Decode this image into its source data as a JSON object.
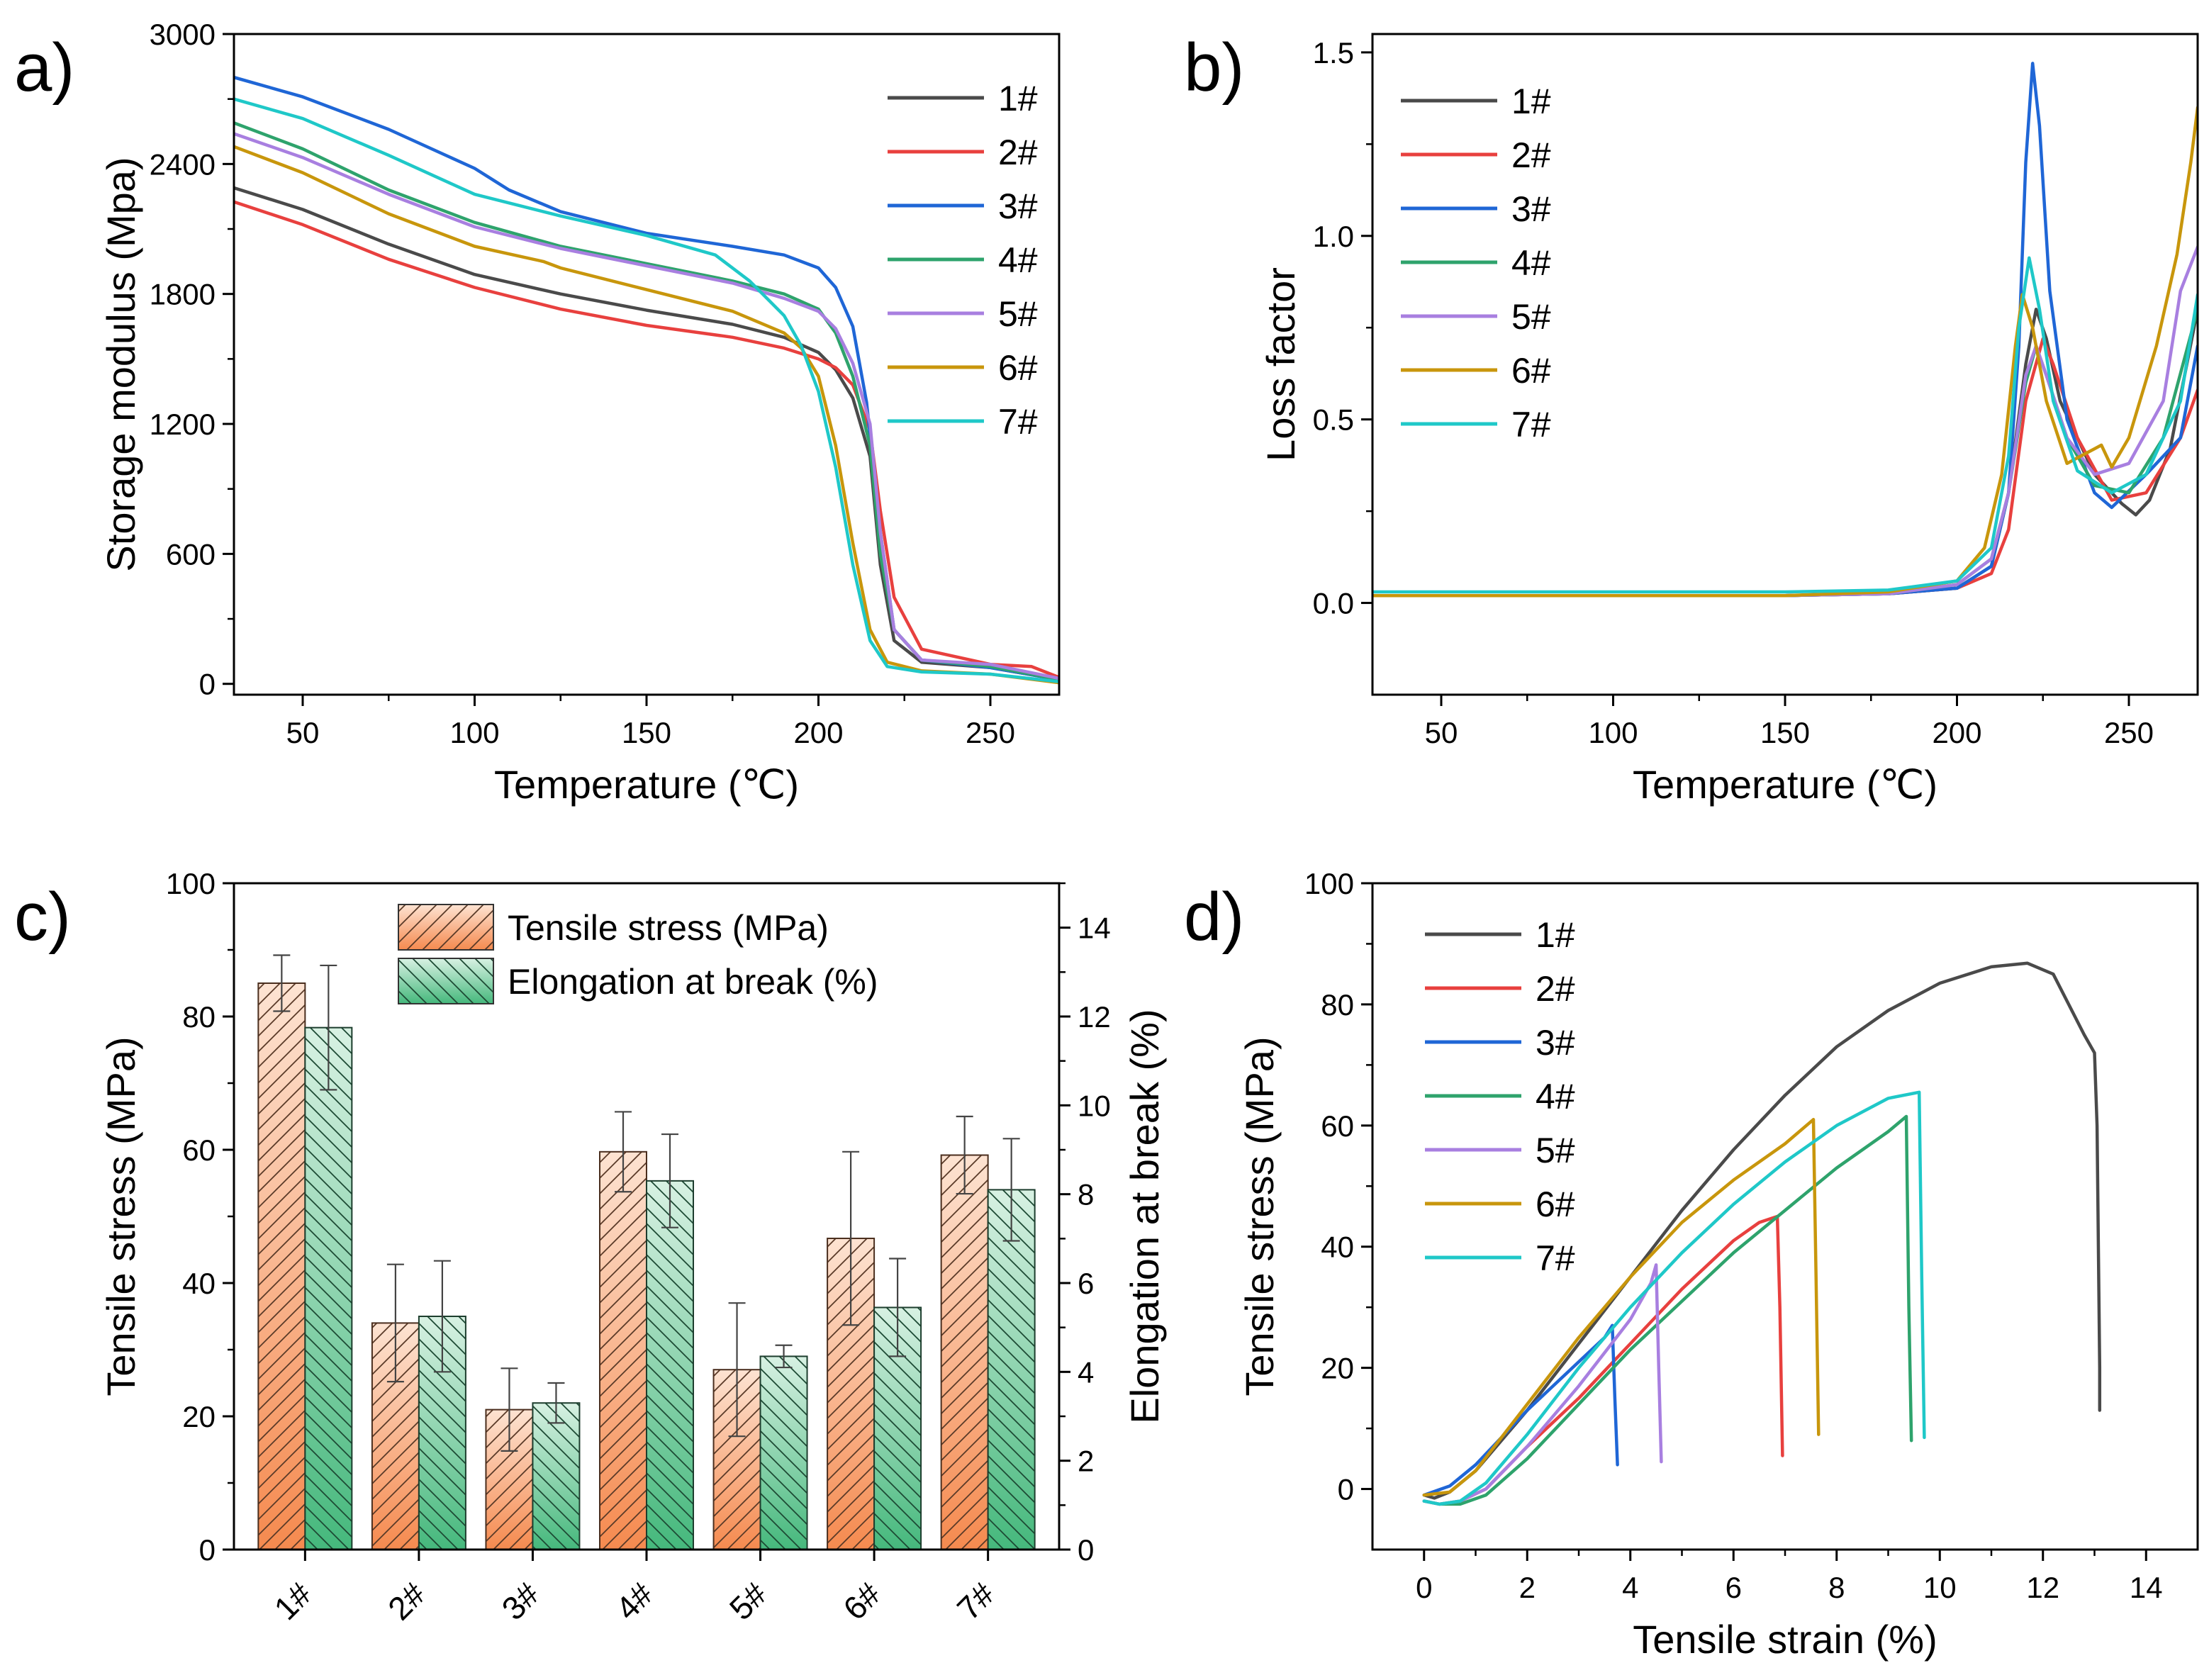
{
  "panel_labels": [
    "a)",
    "b)",
    "c)",
    "d)"
  ],
  "colors": {
    "series": [
      "#4a4a4a",
      "#e8403e",
      "#1f66d6",
      "#2ea36c",
      "#a87fe0",
      "#c8960c",
      "#1fc8c8"
    ],
    "tensile_bar": "#f58a4f",
    "elongation_bar": "#45b87c"
  },
  "chart_data": [
    {
      "type": "line",
      "panel": "a)",
      "xlabel": "Temperature (℃)",
      "ylabel": "Storage modulus (Mpa)",
      "xlim": [
        30,
        270
      ],
      "ylim": [
        -50,
        3000
      ],
      "xticks": [
        50,
        100,
        150,
        200,
        250
      ],
      "xtick_labels": [
        "50",
        "100",
        "150",
        "200",
        "250"
      ],
      "yticks": [
        0,
        600,
        1200,
        1800,
        2400,
        3000
      ],
      "ytick_labels": [
        "0",
        "600",
        "1200",
        "1800",
        "2400",
        "3000"
      ],
      "legend": "top-right",
      "series": [
        {
          "name": "1#",
          "x": [
            30,
            50,
            75,
            100,
            125,
            150,
            175,
            190,
            200,
            205,
            210,
            215,
            218,
            222,
            230,
            250,
            270
          ],
          "y": [
            2290,
            2190,
            2030,
            1890,
            1800,
            1725,
            1660,
            1600,
            1530,
            1450,
            1320,
            1050,
            550,
            200,
            100,
            75,
            20
          ]
        },
        {
          "name": "2#",
          "x": [
            30,
            50,
            75,
            100,
            125,
            150,
            175,
            190,
            200,
            205,
            210,
            215,
            218,
            222,
            230,
            250,
            262,
            270
          ],
          "y": [
            2225,
            2120,
            1960,
            1830,
            1730,
            1655,
            1600,
            1550,
            1500,
            1460,
            1380,
            1170,
            800,
            400,
            160,
            90,
            80,
            30
          ]
        },
        {
          "name": "3#",
          "x": [
            30,
            50,
            75,
            100,
            106,
            110,
            125,
            150,
            175,
            190,
            200,
            205,
            210,
            214,
            218,
            222,
            230,
            250,
            270
          ],
          "y": [
            2800,
            2710,
            2560,
            2380,
            2320,
            2280,
            2180,
            2080,
            2020,
            1980,
            1920,
            1830,
            1650,
            1300,
            700,
            250,
            110,
            75,
            20
          ]
        },
        {
          "name": "4#",
          "x": [
            30,
            50,
            75,
            100,
            125,
            150,
            175,
            190,
            200,
            205,
            210,
            215,
            218,
            222,
            230,
            250,
            270
          ],
          "y": [
            2590,
            2470,
            2280,
            2130,
            2020,
            1940,
            1860,
            1800,
            1730,
            1620,
            1420,
            1100,
            600,
            250,
            110,
            80,
            20
          ]
        },
        {
          "name": "5#",
          "x": [
            30,
            50,
            75,
            100,
            125,
            150,
            175,
            190,
            200,
            205,
            210,
            215,
            218,
            222,
            230,
            250,
            270
          ],
          "y": [
            2540,
            2430,
            2260,
            2110,
            2010,
            1930,
            1850,
            1780,
            1720,
            1640,
            1480,
            1200,
            700,
            250,
            110,
            90,
            25
          ]
        },
        {
          "name": "6#",
          "x": [
            30,
            50,
            75,
            100,
            120,
            125,
            150,
            175,
            190,
            195,
            200,
            205,
            210,
            215,
            220,
            230,
            250,
            270
          ],
          "y": [
            2480,
            2360,
            2170,
            2020,
            1950,
            1920,
            1820,
            1720,
            1620,
            1550,
            1420,
            1100,
            650,
            250,
            100,
            60,
            45,
            5
          ]
        },
        {
          "name": "7#",
          "x": [
            30,
            50,
            75,
            100,
            125,
            150,
            170,
            180,
            190,
            195,
            200,
            205,
            210,
            215,
            220,
            230,
            250,
            270
          ],
          "y": [
            2700,
            2610,
            2440,
            2260,
            2160,
            2070,
            1980,
            1860,
            1700,
            1560,
            1350,
            1000,
            550,
            200,
            80,
            55,
            45,
            10
          ]
        }
      ]
    },
    {
      "type": "line",
      "panel": "b)",
      "xlabel": "Temperature (℃)",
      "ylabel": "Loss factor",
      "xlim": [
        30,
        270
      ],
      "ylim": [
        -0.25,
        1.55
      ],
      "xticks": [
        50,
        100,
        150,
        200,
        250
      ],
      "xtick_labels": [
        "50",
        "100",
        "150",
        "200",
        "250"
      ],
      "yticks": [
        0.0,
        0.5,
        1.0,
        1.5
      ],
      "ytick_labels": [
        "0.0",
        "0.5",
        "1.0",
        "1.5"
      ],
      "legend": "top-left",
      "series": [
        {
          "name": "1#",
          "x": [
            30,
            100,
            150,
            180,
            200,
            210,
            215,
            220,
            223,
            226,
            230,
            240,
            248,
            252,
            256,
            262,
            270
          ],
          "y": [
            0.02,
            0.02,
            0.02,
            0.025,
            0.04,
            0.1,
            0.3,
            0.65,
            0.8,
            0.72,
            0.55,
            0.35,
            0.27,
            0.24,
            0.28,
            0.42,
            0.8
          ]
        },
        {
          "name": "2#",
          "x": [
            30,
            100,
            150,
            180,
            200,
            210,
            215,
            220,
            225,
            228,
            235,
            245,
            255,
            265,
            270
          ],
          "y": [
            0.02,
            0.02,
            0.02,
            0.025,
            0.04,
            0.08,
            0.2,
            0.55,
            0.72,
            0.65,
            0.45,
            0.28,
            0.3,
            0.45,
            0.58
          ]
        },
        {
          "name": "3#",
          "x": [
            30,
            100,
            150,
            180,
            200,
            210,
            215,
            218,
            220,
            222,
            224,
            227,
            232,
            240,
            245,
            255,
            265,
            270
          ],
          "y": [
            0.02,
            0.02,
            0.02,
            0.025,
            0.04,
            0.1,
            0.3,
            0.7,
            1.2,
            1.47,
            1.3,
            0.85,
            0.5,
            0.3,
            0.26,
            0.35,
            0.45,
            0.7
          ]
        },
        {
          "name": "4#",
          "x": [
            30,
            100,
            150,
            180,
            200,
            210,
            215,
            220,
            223,
            226,
            232,
            240,
            250,
            260,
            270
          ],
          "y": [
            0.02,
            0.02,
            0.02,
            0.025,
            0.05,
            0.12,
            0.3,
            0.6,
            0.7,
            0.62,
            0.45,
            0.32,
            0.3,
            0.45,
            0.8
          ]
        },
        {
          "name": "5#",
          "x": [
            30,
            100,
            150,
            180,
            200,
            210,
            215,
            220,
            223,
            226,
            232,
            240,
            250,
            260,
            265,
            270
          ],
          "y": [
            0.02,
            0.02,
            0.02,
            0.025,
            0.05,
            0.12,
            0.3,
            0.62,
            0.7,
            0.62,
            0.45,
            0.35,
            0.38,
            0.55,
            0.85,
            0.97
          ]
        },
        {
          "name": "6#",
          "x": [
            30,
            100,
            150,
            180,
            200,
            208,
            213,
            217,
            219,
            222,
            226,
            232,
            236,
            240,
            242,
            245,
            250,
            258,
            264,
            268,
            270
          ],
          "y": [
            0.02,
            0.02,
            0.02,
            0.03,
            0.06,
            0.15,
            0.35,
            0.7,
            0.84,
            0.75,
            0.55,
            0.38,
            0.4,
            0.42,
            0.43,
            0.37,
            0.45,
            0.7,
            0.95,
            1.2,
            1.35
          ]
        },
        {
          "name": "7#",
          "x": [
            30,
            100,
            150,
            180,
            200,
            210,
            215,
            218,
            221,
            224,
            228,
            235,
            245,
            255,
            265,
            270
          ],
          "y": [
            0.03,
            0.03,
            0.03,
            0.035,
            0.06,
            0.15,
            0.4,
            0.75,
            0.94,
            0.8,
            0.55,
            0.36,
            0.3,
            0.35,
            0.55,
            0.84
          ]
        }
      ]
    },
    {
      "type": "bar",
      "panel": "c)",
      "categories": [
        "1#",
        "2#",
        "3#",
        "4#",
        "5#",
        "6#",
        "7#"
      ],
      "ylabel": "Tensile stress (MPa)",
      "y2label": "Elongation at break (%)",
      "ylim": [
        0,
        100
      ],
      "y2lim": [
        0,
        15
      ],
      "yticks": [
        0,
        20,
        40,
        60,
        80,
        100
      ],
      "ytick_labels": [
        "0",
        "20",
        "40",
        "60",
        "80",
        "100"
      ],
      "y2ticks": [
        0,
        2,
        4,
        6,
        8,
        10,
        12,
        14
      ],
      "y2tick_labels": [
        "0",
        "2",
        "4",
        "6",
        "8",
        "10",
        "12",
        "14"
      ],
      "legend": "top-center",
      "series": [
        {
          "name": "Tensile stress (MPa)",
          "axis": "left",
          "values": [
            85,
            34,
            21,
            59.7,
            27,
            46.7,
            59.2
          ],
          "errors": [
            4.2,
            8.8,
            6.2,
            6.0,
            10.0,
            13.0,
            5.8
          ]
        },
        {
          "name": "Elongation at break (%)",
          "axis": "right",
          "values": [
            11.75,
            5.25,
            3.3,
            8.3,
            4.35,
            5.45,
            8.1
          ],
          "errors": [
            1.4,
            1.25,
            0.45,
            1.05,
            0.25,
            1.1,
            1.15
          ]
        }
      ]
    },
    {
      "type": "line",
      "panel": "d)",
      "xlabel": "Tensile strain (%)",
      "ylabel": "Tensile stress (MPa)",
      "xlim": [
        -1,
        15
      ],
      "ylim": [
        -10,
        100
      ],
      "xticks": [
        0,
        2,
        4,
        6,
        8,
        10,
        12,
        14
      ],
      "xtick_labels": [
        "0",
        "2",
        "4",
        "6",
        "8",
        "10",
        "12",
        "14"
      ],
      "yticks": [
        0,
        20,
        40,
        60,
        80,
        100
      ],
      "ytick_labels": [
        "0",
        "20",
        "40",
        "60",
        "80",
        "100"
      ],
      "legend": "top-left",
      "series": [
        {
          "name": "1#",
          "x": [
            0,
            0.2,
            0.5,
            1,
            2,
            3,
            4,
            5,
            6,
            7,
            8,
            9,
            10,
            11,
            11.7,
            12.2,
            12.5,
            12.8,
            13.0,
            13.05,
            13.1,
            13.1
          ],
          "y": [
            -1,
            -1.5,
            -0.5,
            3,
            13,
            24,
            35,
            46,
            56,
            65,
            73,
            79,
            83.5,
            86.2,
            86.8,
            85,
            80,
            75,
            72,
            60,
            20,
            13
          ]
        },
        {
          "name": "2#",
          "x": [
            0,
            0.3,
            0.7,
            1.2,
            2,
            3,
            4,
            5,
            6,
            6.5,
            6.85,
            6.9,
            6.95
          ],
          "y": [
            -2,
            -2.5,
            -2,
            0,
            7,
            15,
            24,
            33,
            41,
            44,
            45,
            30,
            5.5
          ]
        },
        {
          "name": "3#",
          "x": [
            0,
            0.5,
            1,
            2,
            3,
            3.5,
            3.65,
            3.7,
            3.75
          ],
          "y": [
            -1,
            0.5,
            4,
            13,
            21,
            25,
            27,
            15,
            4
          ]
        },
        {
          "name": "4#",
          "x": [
            0,
            0.3,
            0.7,
            1.2,
            2,
            3,
            4,
            5,
            6,
            7,
            8,
            9,
            9.35,
            9.4,
            9.45
          ],
          "y": [
            -2,
            -2.5,
            -2.5,
            -1,
            5,
            14,
            23,
            31,
            39,
            46,
            53,
            59,
            61.5,
            30,
            8
          ]
        },
        {
          "name": "5#",
          "x": [
            0,
            0.3,
            0.7,
            1.2,
            2,
            3,
            4,
            4.4,
            4.5,
            4.55,
            4.6
          ],
          "y": [
            -2,
            -2.5,
            -2,
            0,
            7,
            17,
            28,
            34,
            37,
            20,
            4.5
          ]
        },
        {
          "name": "6#",
          "x": [
            0,
            0.5,
            1,
            2,
            3,
            4,
            5,
            6,
            7,
            7.55,
            7.6,
            7.65
          ],
          "y": [
            -1,
            -0.5,
            3,
            14,
            25,
            35,
            44,
            51,
            57,
            61,
            35,
            9
          ]
        },
        {
          "name": "7#",
          "x": [
            0,
            0.3,
            0.7,
            1.2,
            2,
            3,
            4,
            5,
            6,
            7,
            8,
            9,
            9.6,
            9.65,
            9.7
          ],
          "y": [
            -2,
            -2.5,
            -2,
            1,
            9,
            20,
            30,
            39,
            47,
            54,
            60,
            64.5,
            65.5,
            35,
            8.5
          ]
        }
      ]
    }
  ]
}
